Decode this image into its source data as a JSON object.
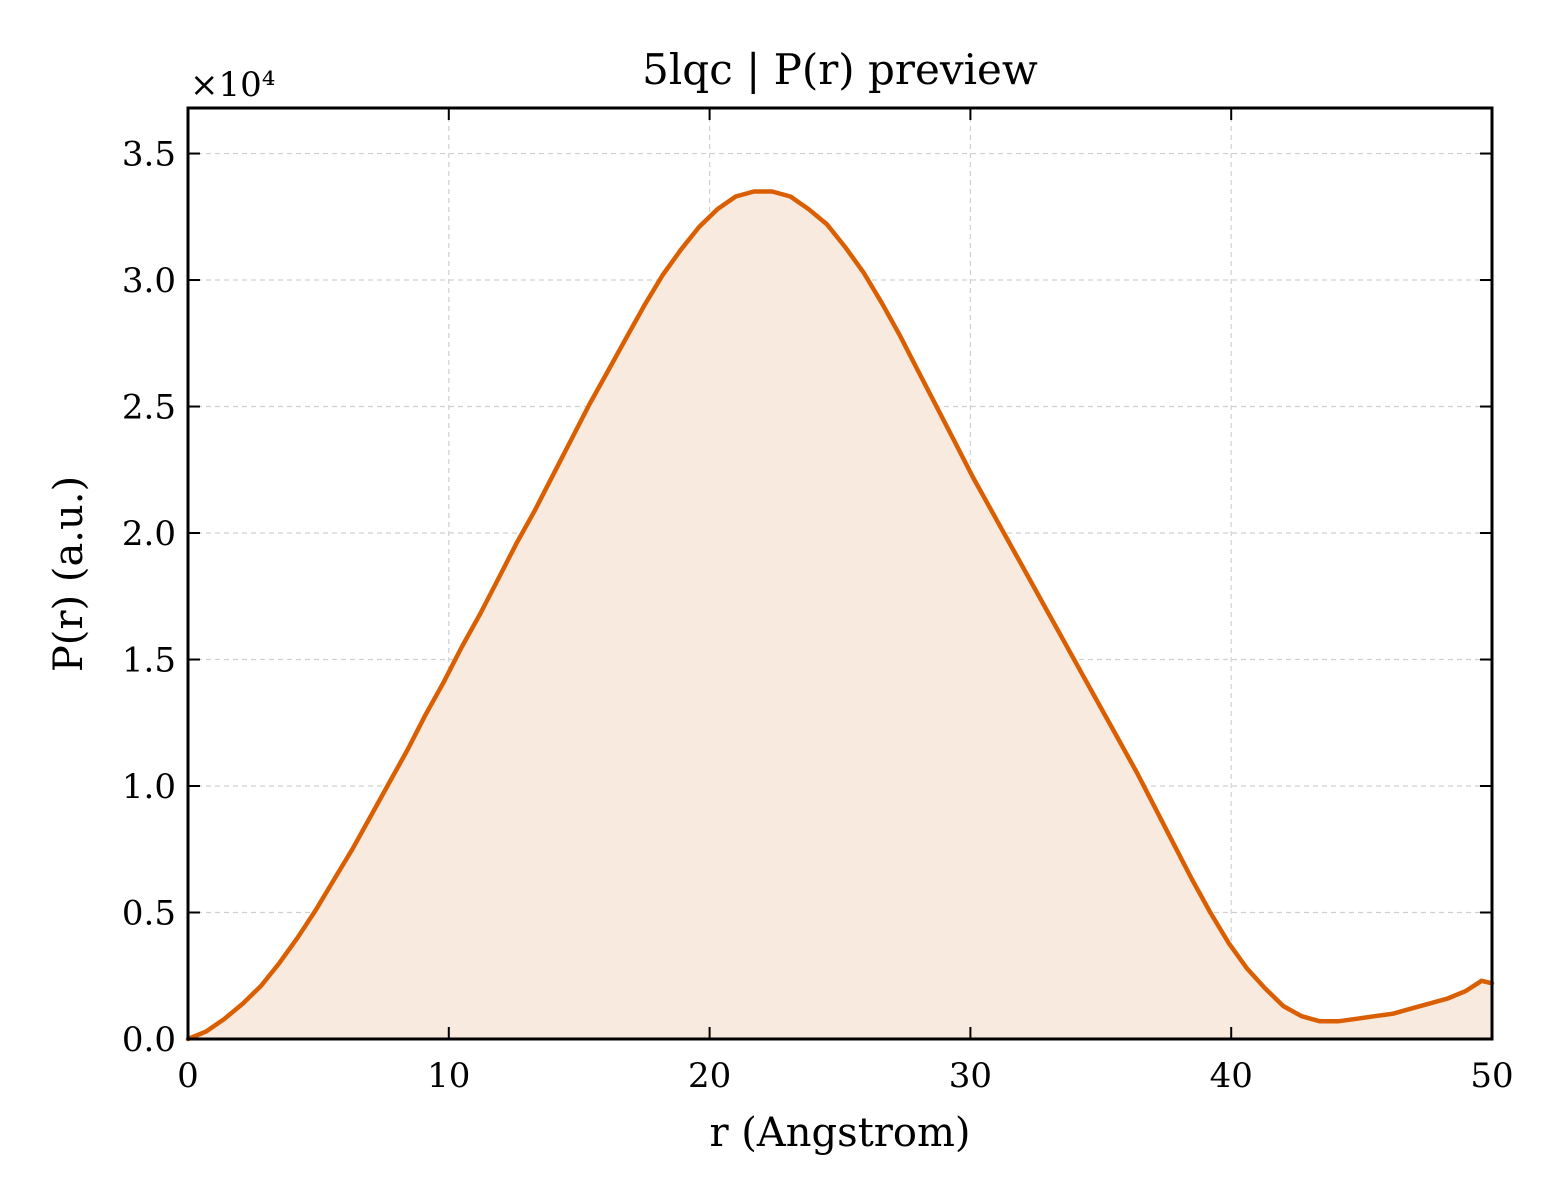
{
  "chart_data": {
    "type": "area",
    "title": "5lqc | P(r) preview",
    "xlabel": "r (Angstrom)",
    "ylabel": "P(r) (a.u.)",
    "y_offset_label": "×10⁴",
    "xlim": [
      0,
      50
    ],
    "ylim": [
      0,
      3.68
    ],
    "xticks": [
      0,
      10,
      20,
      30,
      40,
      50
    ],
    "xtick_labels": [
      "0",
      "10",
      "20",
      "30",
      "40",
      "50"
    ],
    "yticks": [
      0,
      0.5,
      1.0,
      1.5,
      2.0,
      2.5,
      3.0,
      3.5
    ],
    "ytick_labels": [
      "0.0",
      "0.5",
      "1.0",
      "1.5",
      "2.0",
      "2.5",
      "3.0",
      "3.5"
    ],
    "grid": true,
    "series": [
      {
        "line_color": "#d95f02",
        "fill_color": "#f8eadf",
        "x": [
          0,
          0.7,
          1.4,
          2.1,
          2.8,
          3.5,
          4.2,
          4.9,
          5.6,
          6.3,
          7.0,
          7.7,
          8.4,
          9.1,
          9.8,
          10.5,
          11.2,
          11.9,
          12.6,
          13.3,
          14.0,
          14.7,
          15.4,
          16.1,
          16.8,
          17.5,
          18.2,
          18.9,
          19.6,
          20.3,
          21.0,
          21.7,
          22.4,
          23.1,
          23.8,
          24.5,
          25.2,
          25.9,
          26.6,
          27.3,
          28.0,
          28.7,
          29.4,
          30.1,
          30.8,
          31.5,
          32.2,
          32.9,
          33.6,
          34.3,
          35.0,
          35.7,
          36.4,
          37.1,
          37.8,
          38.5,
          39.2,
          39.9,
          40.6,
          41.3,
          42.0,
          42.7,
          43.4,
          44.1,
          44.8,
          45.5,
          46.2,
          46.9,
          47.6,
          48.3,
          49.0,
          49.6,
          50.0
        ],
        "y": [
          0.0,
          0.03,
          0.08,
          0.14,
          0.21,
          0.3,
          0.4,
          0.51,
          0.63,
          0.75,
          0.88,
          1.01,
          1.14,
          1.28,
          1.41,
          1.55,
          1.68,
          1.82,
          1.96,
          2.09,
          2.23,
          2.37,
          2.51,
          2.64,
          2.77,
          2.9,
          3.02,
          3.12,
          3.21,
          3.28,
          3.33,
          3.35,
          3.35,
          3.33,
          3.28,
          3.22,
          3.13,
          3.03,
          2.91,
          2.78,
          2.64,
          2.5,
          2.36,
          2.22,
          2.09,
          1.96,
          1.83,
          1.7,
          1.57,
          1.44,
          1.31,
          1.18,
          1.05,
          0.91,
          0.77,
          0.63,
          0.5,
          0.38,
          0.28,
          0.2,
          0.13,
          0.09,
          0.07,
          0.07,
          0.08,
          0.09,
          0.1,
          0.12,
          0.14,
          0.16,
          0.19,
          0.23,
          0.22
        ]
      }
    ]
  }
}
